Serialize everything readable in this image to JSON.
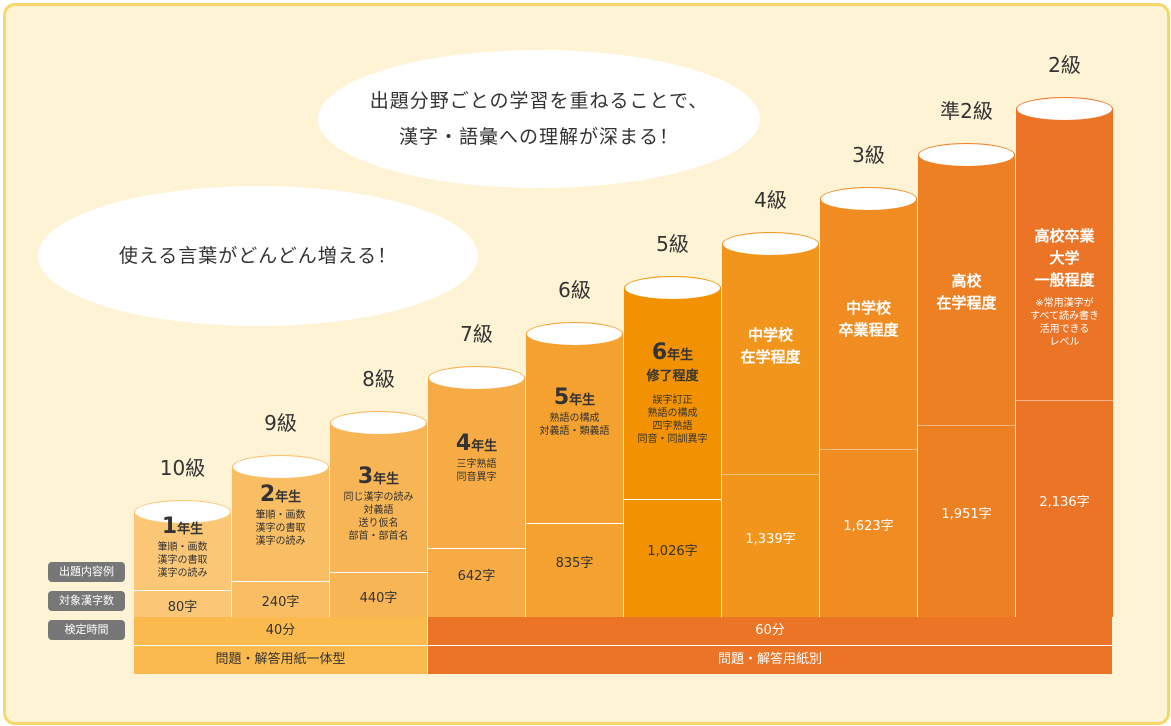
{
  "bubbles": {
    "top": [
      "出題分野ごとの学習を重ねることで、",
      "漢字・語彙への理解が深まる！"
    ],
    "left": "使える言葉がどんどん増える！"
  },
  "row_labels": [
    "出題内容例",
    "対象漢字数",
    "検定時間"
  ],
  "grades": [
    {
      "grade": "10級",
      "kanji_count": "80字",
      "color": "#fbc777",
      "desc": {
        "year_num": "1",
        "year_label": "年生",
        "lines": [
          "筆順・画数",
          "漢字の書取",
          "漢字の読み"
        ]
      }
    },
    {
      "grade": "9級",
      "kanji_count": "240字",
      "color": "#f9be63",
      "desc": {
        "year_num": "2",
        "year_label": "年生",
        "lines": [
          "筆順・画数",
          "漢字の書取",
          "漢字の読み"
        ]
      }
    },
    {
      "grade": "8級",
      "kanji_count": "440字",
      "color": "#f8b556",
      "desc": {
        "year_num": "3",
        "year_label": "年生",
        "lines": [
          "同じ漢字の読み",
          "対義語",
          "送り仮名",
          "部首・部首名"
        ]
      }
    },
    {
      "grade": "7級",
      "kanji_count": "642字",
      "color": "#f7ab45",
      "desc": {
        "year_num": "4",
        "year_label": "年生",
        "lines": [
          "三字熟語",
          "同音異字"
        ]
      }
    },
    {
      "grade": "6級",
      "kanji_count": "835字",
      "color": "#f5a12f",
      "desc": {
        "year_num": "5",
        "year_label": "年生",
        "lines": [
          "熟語の構成",
          "対義語・類義語"
        ]
      }
    },
    {
      "grade": "5級",
      "kanji_count": "1,026字",
      "color": "#f39200",
      "desc": {
        "year_num": "6",
        "year_label": "年生",
        "sub": "修了程度",
        "lines": [
          "誤字訂正",
          "熟語の構成",
          "四字熟語",
          "同音・同訓異字"
        ]
      }
    },
    {
      "grade": "4級",
      "kanji_count": "1,339字",
      "color": "#f2951d",
      "desc": {
        "heading": [
          "中学校",
          "在学程度"
        ]
      }
    },
    {
      "grade": "3級",
      "kanji_count": "1,623字",
      "color": "#f08c22",
      "desc": {
        "heading": [
          "中学校",
          "卒業程度"
        ]
      }
    },
    {
      "grade": "準2級",
      "kanji_count": "1,951字",
      "color": "#ee8024",
      "desc": {
        "heading": [
          "高校",
          "在学程度"
        ]
      }
    },
    {
      "grade": "2級",
      "kanji_count": "2,136字",
      "color": "#eb7426",
      "desc": {
        "heading": [
          "高校卒業",
          "大学",
          "一般程度"
        ],
        "note": [
          "※常用漢字が",
          "すべて読み書き",
          "活用できる",
          "レベル"
        ]
      }
    }
  ],
  "time_bands": [
    {
      "label": "40分",
      "color": "#fbba4e"
    },
    {
      "label": "60分",
      "color": "#eb7426"
    }
  ],
  "format_bands": [
    {
      "label": "問題・解答用紙一体型",
      "color": "#fbba4e"
    },
    {
      "label": "問題・解答用紙別",
      "color": "#eb7426"
    }
  ]
}
